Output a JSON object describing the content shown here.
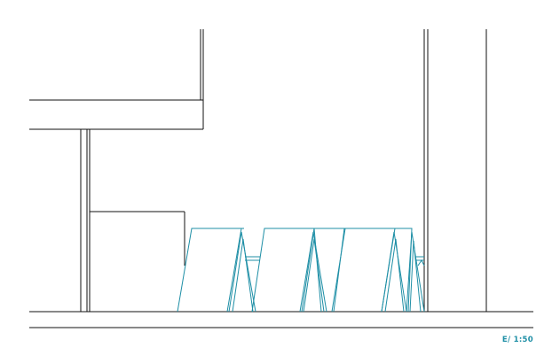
{
  "drawing": {
    "scale_label": "E/ 1:50",
    "colors": {
      "linework": "#111111",
      "highlight": "#1f8fa6",
      "background": "#ffffff"
    }
  }
}
